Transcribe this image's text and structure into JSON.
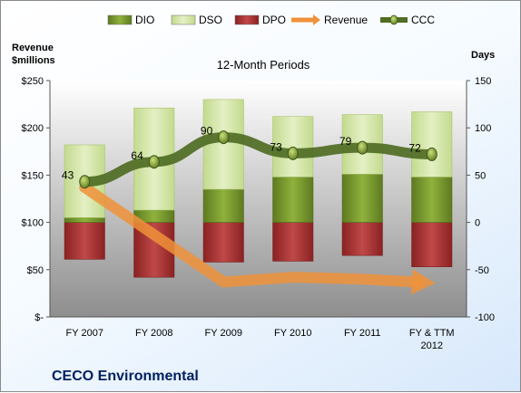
{
  "chart_data": {
    "type": "bar",
    "title": "12-Month Periods",
    "company": "CECO Environmental",
    "left_axis_label": [
      "Revenue",
      "$millions"
    ],
    "right_axis_label": "Days",
    "categories": [
      "FY 2007",
      "FY 2008",
      "FY 2009",
      "FY 2010",
      "FY 2011",
      "FY & TTM 2012"
    ],
    "left_axis": {
      "ylim": [
        0,
        250
      ],
      "ticks": [
        0,
        50,
        100,
        150,
        200,
        250
      ],
      "tick_labels": [
        "$-",
        "$50",
        "$100",
        "$150",
        "$200",
        "$250"
      ]
    },
    "right_axis": {
      "ylim": [
        -100,
        150
      ],
      "ticks": [
        -100,
        -50,
        0,
        50,
        100,
        150
      ],
      "tick_labels": [
        "-100",
        "-50",
        "0",
        "50",
        "100",
        "150"
      ]
    },
    "series": [
      {
        "name": "DIO",
        "kind": "stacked-bar",
        "axis": "right",
        "color": "#7a9a2e",
        "values": [
          5,
          13,
          35,
          48,
          51,
          48
        ]
      },
      {
        "name": "DSO",
        "kind": "stacked-bar",
        "axis": "right",
        "color": "#d4e6a7",
        "values": [
          77,
          108,
          95,
          64,
          63,
          69
        ]
      },
      {
        "name": "DPO",
        "kind": "negative-bar",
        "axis": "right",
        "color": "#a83232",
        "values": [
          -39,
          -58,
          -42,
          -41,
          -35,
          -47
        ]
      },
      {
        "name": "Revenue",
        "kind": "arrow-line",
        "axis": "left",
        "color": "#f0923a",
        "values": [
          137,
          87,
          37,
          42,
          40,
          36
        ]
      },
      {
        "name": "CCC",
        "kind": "line-markers",
        "axis": "right",
        "color": "#4f6d24",
        "values": [
          43,
          64,
          90,
          73,
          79,
          72
        ],
        "labels": [
          "43",
          "64",
          "90",
          "73",
          "79",
          "72"
        ]
      }
    ],
    "legend_position": "top",
    "grid": false
  }
}
